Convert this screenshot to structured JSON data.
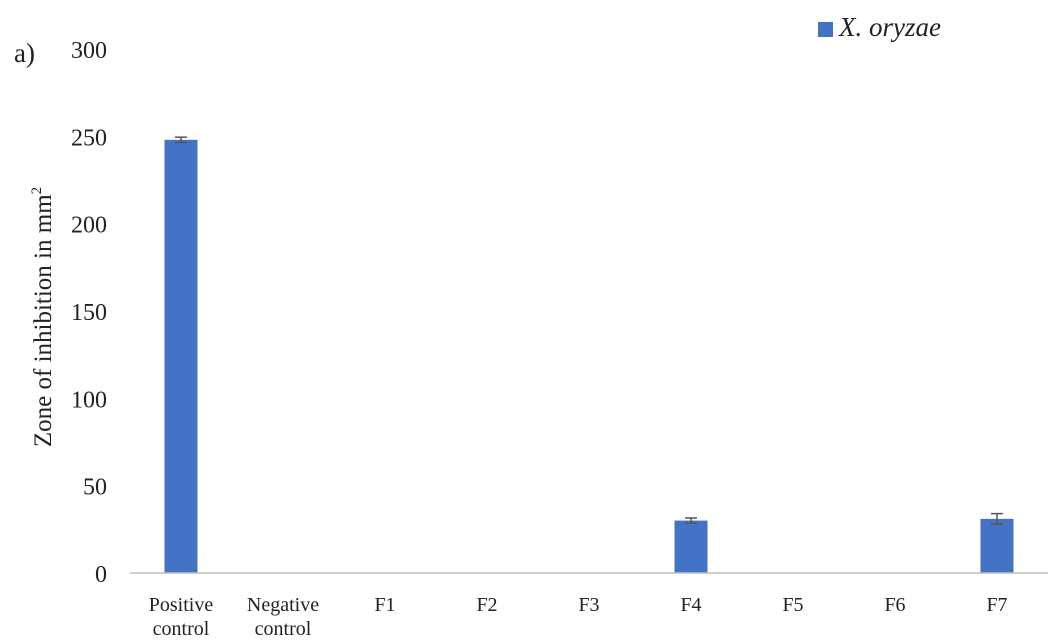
{
  "panel_label": "a)",
  "chart_data": {
    "type": "bar",
    "categories": [
      [
        "Positive",
        "control"
      ],
      [
        "Negative",
        "control"
      ],
      [
        "F1"
      ],
      [
        "F2"
      ],
      [
        "F3"
      ],
      [
        "F4"
      ],
      [
        "F5"
      ],
      [
        "F6"
      ],
      [
        "F7"
      ]
    ],
    "series": [
      {
        "name": "X. oryzae",
        "color": "#4472C4",
        "values": [
          248,
          0,
          0,
          0,
          0,
          30,
          0,
          0,
          31
        ],
        "errors": [
          1.5,
          0,
          0,
          0,
          0,
          1.5,
          0,
          0,
          3
        ]
      }
    ],
    "ylabel": "Zone of inhibition in mm",
    "ylabel_superscript": "2",
    "ylim": [
      0,
      300
    ],
    "yticks": [
      0,
      50,
      100,
      150,
      200,
      250,
      300
    ],
    "grid": false,
    "legend_position": "top-right"
  }
}
